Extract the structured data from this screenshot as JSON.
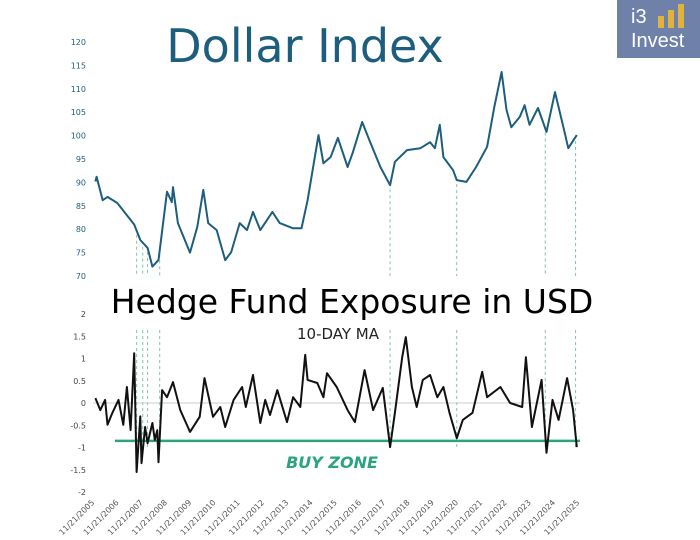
{
  "logo": {
    "line1": "i3",
    "line2": "Invest",
    "bar_color": "#e2b33c",
    "background": "#6f81a9"
  },
  "chart_data": [
    {
      "type": "line",
      "title": "Dollar Index",
      "color": "#1d5e7e",
      "ylim": [
        70,
        120
      ],
      "yticks": [
        70,
        75,
        80,
        85,
        90,
        95,
        100,
        105,
        110,
        115,
        120
      ],
      "grid": false,
      "x": [
        2006.0,
        2006.05,
        2006.3,
        2006.5,
        2006.9,
        2007.3,
        2007.6,
        2007.85,
        2008.15,
        2008.35,
        2008.6,
        2008.95,
        2009.15,
        2009.2,
        2009.4,
        2009.9,
        2010.2,
        2010.45,
        2010.65,
        2011.0,
        2011.35,
        2011.6,
        2011.95,
        2012.25,
        2012.5,
        2012.8,
        2013.3,
        2013.6,
        2014.15,
        2014.5,
        2014.75,
        2015.2,
        2015.4,
        2015.7,
        2016.0,
        2016.4,
        2016.6,
        2017.0,
        2017.3,
        2017.75,
        2018.15,
        2018.35,
        2018.85,
        2019.4,
        2019.8,
        2020.0,
        2020.2,
        2020.35,
        2020.75,
        2020.9,
        2021.3,
        2021.7,
        2022.15,
        2022.45,
        2022.75,
        2022.95,
        2023.15,
        2023.5,
        2023.7,
        2023.9,
        2024.25,
        2024.6,
        2024.95,
        2025.3,
        2025.5,
        2025.85
      ],
      "values": [
        90.2,
        91.2,
        86.2,
        86.9,
        85.6,
        83,
        81,
        77.7,
        76,
        72,
        73.4,
        88,
        85.8,
        89,
        81.3,
        75,
        80.5,
        88.4,
        81.3,
        79.8,
        73.4,
        75.1,
        81.3,
        79.8,
        83.7,
        79.8,
        83.7,
        81.3,
        80.2,
        80.2,
        86.2,
        100.1,
        94.1,
        95.4,
        99.5,
        93.3,
        96.2,
        102.9,
        99,
        93.3,
        89.4,
        94.4,
        96.9,
        97.3,
        98.6,
        97.3,
        102.3,
        95.4,
        92.6,
        90.5,
        90.1,
        93.3,
        97.6,
        106.1,
        113.6,
        105.5,
        101.8,
        104,
        106.5,
        102.3,
        105.9,
        100.8,
        109.3,
        101.8,
        97.3,
        100.1
      ]
    },
    {
      "type": "line",
      "title": "Hedge Fund Exposure in USD",
      "subtitle": "10-DAY MA",
      "color": "#111111",
      "ylim": [
        -2,
        2
      ],
      "yticks": [
        -2,
        -1.5,
        -1,
        -0.5,
        0,
        0.5,
        1,
        1.5,
        2
      ],
      "xtick_labels": [
        "11/21/2005",
        "11/21/2006",
        "11/21/2007",
        "11/21/2008",
        "11/21/2009",
        "11/21/2010",
        "11/21/2011",
        "11/21/2012",
        "11/21/2013",
        "11/21/2014",
        "11/21/2015",
        "11/21/2016",
        "11/21/2017",
        "11/21/2018",
        "11/21/2019",
        "11/21/2020",
        "11/21/2021",
        "11/21/2022",
        "11/21/2023",
        "11/21/2024",
        "11/21/2025"
      ],
      "x": [
        2006.0,
        2006.2,
        2006.4,
        2006.5,
        2006.7,
        2006.95,
        2007.15,
        2007.3,
        2007.45,
        2007.6,
        2007.7,
        2007.85,
        2007.9,
        2008.05,
        2008.15,
        2008.35,
        2008.45,
        2008.55,
        2008.6,
        2008.75,
        2008.95,
        2009.2,
        2009.5,
        2009.9,
        2010.3,
        2010.5,
        2010.85,
        2011.15,
        2011.35,
        2011.7,
        2012.05,
        2012.2,
        2012.5,
        2012.8,
        2013.0,
        2013.2,
        2013.5,
        2013.9,
        2014.15,
        2014.45,
        2014.65,
        2014.75,
        2015.15,
        2015.4,
        2015.55,
        2015.95,
        2016.4,
        2016.7,
        2017.1,
        2017.45,
        2017.85,
        2018.15,
        2018.35,
        2018.65,
        2018.8,
        2019.05,
        2019.25,
        2019.5,
        2019.8,
        2020.1,
        2020.35,
        2020.6,
        2020.9,
        2021.15,
        2021.55,
        2021.95,
        2022.15,
        2022.7,
        2023.1,
        2023.6,
        2023.75,
        2024.0,
        2024.4,
        2024.6,
        2024.85,
        2025.1,
        2025.45,
        2025.7,
        2025.85
      ],
      "values": [
        0.11,
        -0.16,
        0.07,
        -0.49,
        -0.22,
        0.07,
        -0.49,
        0.36,
        -0.61,
        1.12,
        -1.55,
        -0.3,
        -1.35,
        -0.54,
        -0.9,
        -0.45,
        -0.83,
        -0.61,
        -1.33,
        0.29,
        0.13,
        0.47,
        -0.16,
        -0.65,
        -0.31,
        0.56,
        -0.31,
        -0.09,
        -0.54,
        0.07,
        0.36,
        -0.09,
        0.63,
        -0.45,
        0.07,
        -0.27,
        0.29,
        -0.43,
        0.13,
        -0.09,
        1.08,
        0.52,
        0.45,
        0.13,
        0.67,
        0.36,
        -0.16,
        -0.43,
        0.74,
        -0.16,
        0.34,
        -0.99,
        -0.22,
        1.03,
        1.48,
        0.36,
        -0.09,
        0.52,
        0.63,
        0.13,
        0.36,
        -0.22,
        -0.79,
        -0.38,
        -0.22,
        0.7,
        0.13,
        0.36,
        0,
        -0.09,
        1.03,
        -0.54,
        0.52,
        -1.12,
        0.07,
        -0.38,
        0.56,
        -0.16,
        -0.99
      ],
      "buy_zone": {
        "label": "BUY ZONE",
        "level": -0.85,
        "color": "#2aa37f"
      },
      "marker_dates": [
        2007.7,
        2007.95,
        2008.15,
        2008.65,
        2018.15,
        2020.9,
        2024.55,
        2025.8
      ]
    }
  ]
}
